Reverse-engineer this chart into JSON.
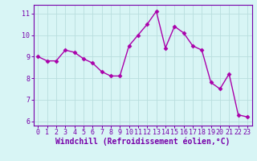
{
  "x": [
    0,
    1,
    2,
    3,
    4,
    5,
    6,
    7,
    8,
    9,
    10,
    11,
    12,
    13,
    14,
    15,
    16,
    17,
    18,
    19,
    20,
    21,
    22,
    23
  ],
  "y": [
    9.0,
    8.8,
    8.8,
    9.3,
    9.2,
    8.9,
    8.7,
    8.3,
    8.1,
    8.1,
    9.5,
    10.0,
    10.5,
    11.1,
    9.4,
    10.4,
    10.1,
    9.5,
    9.3,
    7.8,
    7.5,
    8.2,
    6.3,
    6.2
  ],
  "line_color": "#aa00aa",
  "marker": "D",
  "marker_size": 2.5,
  "linewidth": 1.0,
  "xlabel": "Windchill (Refroidissement éolien,°C)",
  "xlabel_fontsize": 7,
  "xlim": [
    -0.5,
    23.5
  ],
  "ylim": [
    5.8,
    11.4
  ],
  "yticks": [
    6,
    7,
    8,
    9,
    10,
    11
  ],
  "xticks": [
    0,
    1,
    2,
    3,
    4,
    5,
    6,
    7,
    8,
    9,
    10,
    11,
    12,
    13,
    14,
    15,
    16,
    17,
    18,
    19,
    20,
    21,
    22,
    23
  ],
  "tick_fontsize": 6,
  "background_color": "#d8f5f5",
  "grid_color": "#b8dede",
  "grid_linewidth": 0.6,
  "spine_color": "#7700aa",
  "text_color": "#7700aa"
}
